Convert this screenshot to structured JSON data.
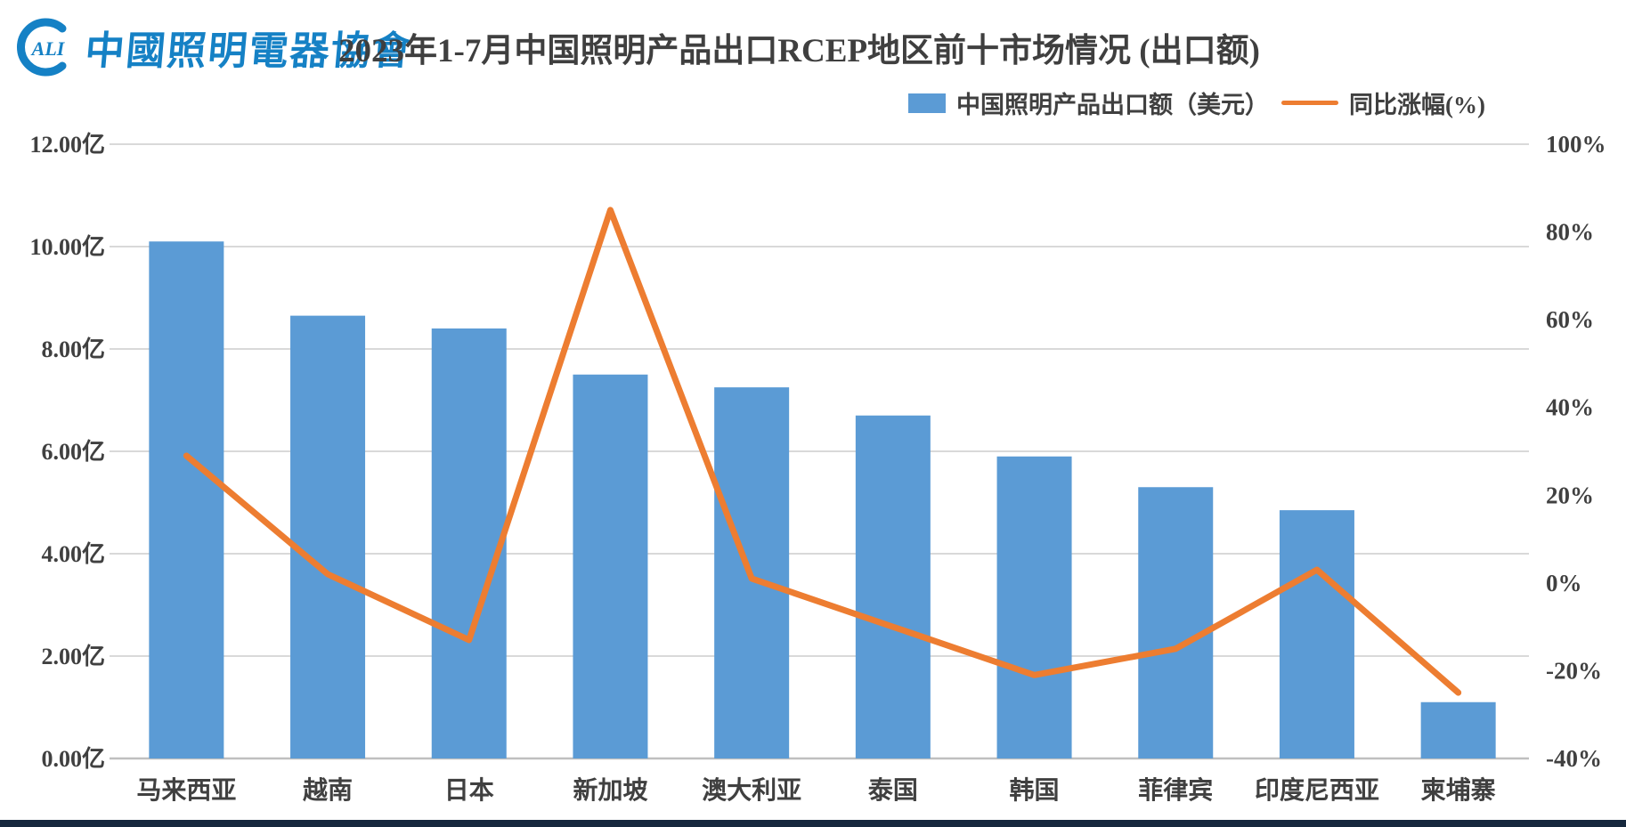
{
  "logo": {
    "mark_text": "ALI",
    "org_name": "中國照明電器協會",
    "brand_color": "#1581C5"
  },
  "header": {
    "title": "2023年1-7月中国照明产品出口RCEP地区前十市场情况 (出口额)"
  },
  "legend": {
    "bar_label": "中国照明产品出口额（美元）",
    "line_label": "同比涨幅(%)"
  },
  "colors": {
    "bar": "#5B9BD5",
    "line": "#ED7D31",
    "gridline": "#D9D9D9",
    "baseline": "#BFBFBF",
    "axis_text": "#404040",
    "footer_band": "#16283E"
  },
  "chart_data": {
    "type": "bar",
    "title": "2023年1-7月中国照明产品出口RCEP地区前十市场情况 (出口额)",
    "categories": [
      "马来西亚",
      "越南",
      "日本",
      "新加坡",
      "澳大利亚",
      "泰国",
      "韩国",
      "菲律宾",
      "印度尼西亚",
      "柬埔寨"
    ],
    "series": [
      {
        "name": "中国照明产品出口额（美元）",
        "type": "bar",
        "axis": "left",
        "unit": "亿美元",
        "values": [
          10.1,
          8.65,
          8.4,
          7.5,
          7.25,
          6.7,
          5.9,
          5.3,
          4.85,
          1.1
        ]
      },
      {
        "name": "同比涨幅(%)",
        "type": "line",
        "axis": "right",
        "unit": "%",
        "values": [
          29,
          2,
          -13,
          85,
          1,
          -10,
          -21,
          -15,
          3,
          -25
        ]
      }
    ],
    "left_axis": {
      "min": 0,
      "max": 12,
      "step": 2,
      "tick_values": [
        12,
        10,
        8,
        6,
        4,
        2,
        0
      ],
      "tick_labels": [
        "12.00亿",
        "10.00亿",
        "8.00亿",
        "6.00亿",
        "4.00亿",
        "2.00亿",
        "0.00亿"
      ]
    },
    "right_axis": {
      "min": -40,
      "max": 100,
      "step": 20,
      "tick_values": [
        100,
        80,
        60,
        40,
        20,
        0,
        -20,
        -40
      ],
      "tick_labels": [
        "100%",
        "80%",
        "60%",
        "40%",
        "20%",
        "0%",
        "-20%",
        "-40%"
      ]
    },
    "grid": true,
    "legend_position": "top-right"
  }
}
